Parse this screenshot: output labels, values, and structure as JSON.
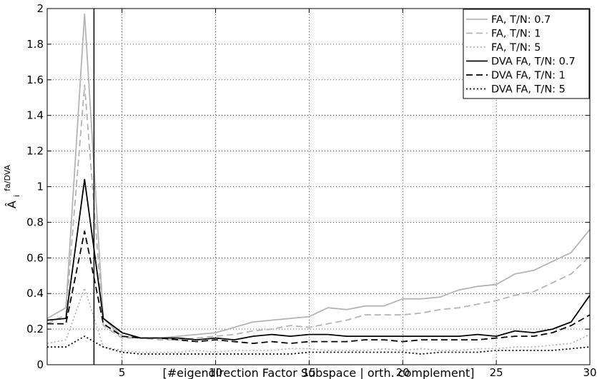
{
  "chart_data": {
    "type": "line",
    "xlabel": "[#eigendirection Factor Subspace | orth. complement]",
    "ylabel": "Â_i^{fa/DVA}",
    "ylabel_main": "Â",
    "ylabel_sub": "i",
    "ylabel_sup": "fa/DVA",
    "xlim": [
      1,
      30
    ],
    "ylim": [
      0,
      2
    ],
    "xticks": [
      5,
      10,
      15,
      20,
      25,
      30
    ],
    "yticks": [
      0,
      0.2,
      0.4,
      0.6,
      0.8,
      1,
      1.2,
      1.4,
      1.6,
      1.8,
      2
    ],
    "grid": true,
    "legend_position": "top-right",
    "vline_x": 3.5,
    "x": [
      1,
      2,
      3,
      4,
      5,
      6,
      7,
      8,
      9,
      10,
      11,
      12,
      13,
      14,
      15,
      16,
      17,
      18,
      19,
      20,
      21,
      22,
      23,
      24,
      25,
      26,
      27,
      28,
      29,
      30
    ],
    "series": [
      {
        "name": "FA, T/N: 0.7",
        "color": "#b4b4b4",
        "dash": "solid",
        "values": [
          0.26,
          0.32,
          1.97,
          0.26,
          0.16,
          0.15,
          0.15,
          0.16,
          0.17,
          0.18,
          0.21,
          0.24,
          0.25,
          0.26,
          0.27,
          0.32,
          0.31,
          0.33,
          0.33,
          0.37,
          0.37,
          0.38,
          0.42,
          0.44,
          0.45,
          0.51,
          0.53,
          0.58,
          0.63,
          0.76
        ]
      },
      {
        "name": "FA, T/N: 1",
        "color": "#b4b4b4",
        "dash": "dashed",
        "values": [
          0.23,
          0.28,
          1.57,
          0.22,
          0.15,
          0.15,
          0.14,
          0.14,
          0.15,
          0.16,
          0.17,
          0.19,
          0.2,
          0.22,
          0.21,
          0.23,
          0.25,
          0.28,
          0.28,
          0.28,
          0.29,
          0.31,
          0.32,
          0.34,
          0.36,
          0.39,
          0.41,
          0.46,
          0.51,
          0.61
        ]
      },
      {
        "name": "FA, T/N: 5",
        "color": "#b4b4b4",
        "dash": "dotted",
        "values": [
          0.12,
          0.14,
          0.43,
          0.1,
          0.08,
          0.07,
          0.07,
          0.07,
          0.08,
          0.07,
          0.08,
          0.08,
          0.08,
          0.09,
          0.09,
          0.08,
          0.08,
          0.08,
          0.09,
          0.08,
          0.09,
          0.08,
          0.08,
          0.09,
          0.09,
          0.1,
          0.1,
          0.11,
          0.12,
          0.17
        ]
      },
      {
        "name": "DVA FA, T/N: 0.7",
        "color": "#000000",
        "dash": "solid",
        "values": [
          0.25,
          0.26,
          1.04,
          0.26,
          0.18,
          0.15,
          0.15,
          0.15,
          0.14,
          0.15,
          0.14,
          0.16,
          0.17,
          0.16,
          0.17,
          0.17,
          0.16,
          0.16,
          0.16,
          0.16,
          0.16,
          0.16,
          0.16,
          0.17,
          0.16,
          0.19,
          0.18,
          0.2,
          0.24,
          0.39
        ]
      },
      {
        "name": "DVA FA, T/N: 1",
        "color": "#000000",
        "dash": "dashed",
        "values": [
          0.23,
          0.23,
          0.75,
          0.23,
          0.16,
          0.15,
          0.15,
          0.14,
          0.13,
          0.14,
          0.13,
          0.12,
          0.13,
          0.12,
          0.13,
          0.13,
          0.13,
          0.14,
          0.14,
          0.13,
          0.14,
          0.14,
          0.14,
          0.14,
          0.15,
          0.16,
          0.16,
          0.18,
          0.22,
          0.28
        ]
      },
      {
        "name": "DVA FA, T/N: 5",
        "color": "#000000",
        "dash": "dotted",
        "values": [
          0.1,
          0.1,
          0.16,
          0.1,
          0.07,
          0.06,
          0.06,
          0.06,
          0.06,
          0.06,
          0.06,
          0.06,
          0.06,
          0.06,
          0.07,
          0.07,
          0.07,
          0.07,
          0.07,
          0.07,
          0.06,
          0.07,
          0.07,
          0.07,
          0.08,
          0.08,
          0.08,
          0.08,
          0.09,
          0.1
        ]
      }
    ]
  }
}
